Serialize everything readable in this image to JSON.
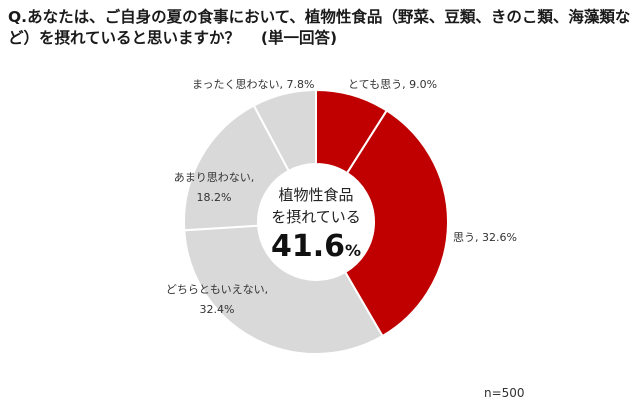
{
  "question": "Q.あなたは、ご自身の夏の食事において、植物性食品（野菜、豆類、きのこ類、海藻類など）を摂れていると思いますか？　 (単一回答)",
  "sample_size": "n=500",
  "chart_data": {
    "type": "pie",
    "variant": "donut",
    "categories": [
      "とても思う",
      "思う",
      "どちらともいえない",
      "あまり思わない",
      "まったく思わない"
    ],
    "values": [
      9.0,
      32.6,
      32.4,
      18.2,
      7.8
    ],
    "labels": [
      "とても思う, 9.0%",
      "思う, 32.6%",
      "どちらともいえない, 32.4%",
      "あまり思わない, 18.2%",
      "まったく思わない, 7.8%"
    ],
    "colors": [
      "#c00000",
      "#c00000",
      "#d9d9d9",
      "#d9d9d9",
      "#d9d9d9"
    ],
    "center_text": {
      "line1": "植物性食品",
      "line2": "を摂れている",
      "value": "41.6",
      "unit": "%"
    }
  }
}
